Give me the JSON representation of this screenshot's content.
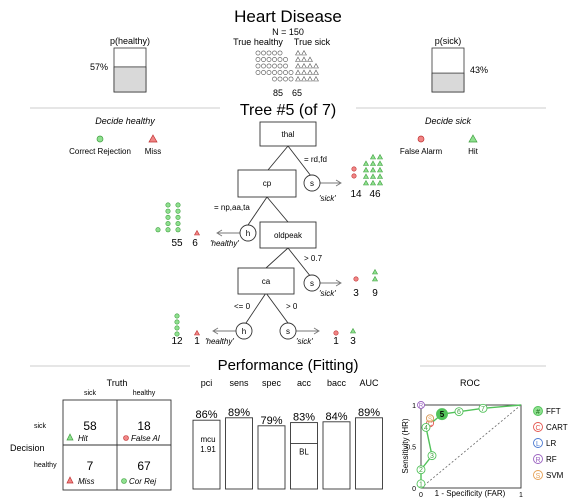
{
  "header": {
    "title": "Heart Disease",
    "n_label": "N = 150",
    "true_healthy_label": "True healthy",
    "true_sick_label": "True sick",
    "healthy_count": "85",
    "sick_count": "65",
    "p_healthy_label": "p(healthy)",
    "p_healthy_value": "57%",
    "p_healthy_fraction": 0.57,
    "p_sick_label": "p(sick)",
    "p_sick_value": "43%",
    "p_sick_fraction": 0.43
  },
  "tree": {
    "title": "Tree #5 (of 7)",
    "decide_healthy": "Decide healthy",
    "decide_sick": "Decide sick",
    "legend": {
      "correct_rejection": "Correct Rejection",
      "miss": "Miss",
      "false_alarm": "False Alarm",
      "hit": "Hit"
    },
    "nodes": {
      "thal": "thal",
      "cp": "cp",
      "oldpeak": "oldpeak",
      "ca": "ca"
    },
    "branches": {
      "thal_sick": "= rd,fd",
      "cp_healthy": "= np,aa,ta",
      "oldpeak_sick": "> 0.7",
      "ca_healthy": "<= 0",
      "ca_sick": "> 0"
    },
    "exit_letters": {
      "s": "s",
      "h": "h"
    },
    "exit_labels": {
      "sick": "'sick'",
      "healthy": "'healthy'"
    },
    "exit_counts": {
      "thal_fa": "14",
      "thal_hit": "46",
      "cp_cr": "55",
      "cp_miss": "6",
      "oldpeak_fa": "3",
      "oldpeak_hit": "9",
      "ca_cr": "12",
      "ca_miss": "1",
      "ca_fa": "1",
      "ca_hit": "3"
    }
  },
  "performance": {
    "title": "Performance (Fitting)",
    "truth_label": "Truth",
    "truth_sick": "sick",
    "truth_healthy": "healthy",
    "decision_label": "Decision",
    "decision_sick": "sick",
    "decision_healthy": "healthy",
    "hi": "58",
    "hi_label": "Hit",
    "fa": "18",
    "fa_label": "False Al",
    "mi": "7",
    "mi_label": "Miss",
    "cr": "67",
    "cr_label": "Cor Rej",
    "stat_headers": [
      "pci",
      "sens",
      "spec",
      "acc",
      "bacc",
      "AUC"
    ],
    "stat_values": [
      "86%",
      "89%",
      "79%",
      "83%",
      "84%",
      "89%"
    ],
    "stat_fractions": [
      0.86,
      0.89,
      0.79,
      0.83,
      0.84,
      0.89
    ],
    "mcu_label": "mcu",
    "mcu_value": "1.91",
    "bl_label": "BL",
    "bl_fraction": 0.57
  },
  "roc": {
    "title": "ROC",
    "xlabel": "1 - Specificity (FAR)",
    "ylabel": "Sensitivity (HR)",
    "x_ticks": [
      "0",
      "1"
    ],
    "y_ticks": [
      "0",
      "0.5",
      "1"
    ],
    "fft_points": [
      {
        "label": "1",
        "far": 0.0,
        "hr": 0.05
      },
      {
        "label": "2",
        "far": 0.0,
        "hr": 0.22
      },
      {
        "label": "3",
        "far": 0.11,
        "hr": 0.39
      },
      {
        "label": "4",
        "far": 0.05,
        "hr": 0.73
      },
      {
        "label": "5",
        "far": 0.21,
        "hr": 0.89
      },
      {
        "label": "6",
        "far": 0.38,
        "hr": 0.92
      },
      {
        "label": "7",
        "far": 0.62,
        "hr": 0.96
      }
    ],
    "selected_tree": "5",
    "other_models": [
      {
        "letter": "C",
        "far": 0.09,
        "hr": 0.78,
        "color": "#e4554e"
      },
      {
        "letter": "L",
        "far": 0.09,
        "hr": 0.84,
        "color": "#4a78d0"
      },
      {
        "letter": "R",
        "far": 0.0,
        "hr": 1.0,
        "color": "#9a62c0"
      },
      {
        "letter": "S",
        "far": 0.09,
        "hr": 0.84,
        "color": "#e5a055"
      }
    ],
    "legend": [
      {
        "letter": "#",
        "name": "FFT",
        "color": "#52c25a",
        "fill": "#8fe08f"
      },
      {
        "letter": "C",
        "name": "CART",
        "color": "#e4554e",
        "fill": "#ffffff"
      },
      {
        "letter": "L",
        "name": "LR",
        "color": "#4a78d0",
        "fill": "#ffffff"
      },
      {
        "letter": "R",
        "name": "RF",
        "color": "#9a62c0",
        "fill": "#ffffff"
      },
      {
        "letter": "S",
        "name": "SVM",
        "color": "#e5a055",
        "fill": "#ffffff"
      }
    ]
  },
  "colors": {
    "green_fill": "#8fe08f",
    "green_stroke": "#3f9f3f",
    "red_fill": "#f08585",
    "red_stroke": "#c03030",
    "bar_fill": "#d9d9d9",
    "rule": "#bbbbbb"
  }
}
